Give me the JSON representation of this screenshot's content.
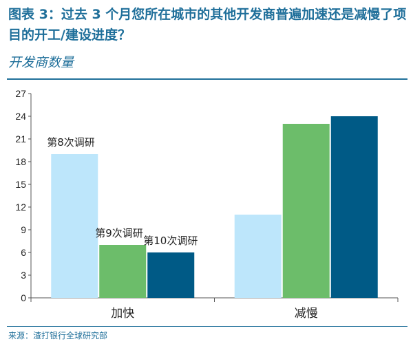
{
  "header": {
    "title": "图表 3：过去 3 个月您所在城市的其他开发商普遍加速还是减慢了项目的开工/建设进度？",
    "subtitle": "开发商数量"
  },
  "footer": {
    "source": "来源：渣打银行全球研究部"
  },
  "chart_data": {
    "type": "bar",
    "title": "图表 3：过去 3 个月您所在城市的其他开发商普遍加速还是减慢了项目的开工/建设进度？",
    "ylabel": "开发商数量",
    "categories": [
      "加快",
      "减慢"
    ],
    "series": [
      {
        "name": "第8次调研",
        "values": [
          19,
          11
        ],
        "color": "#bde6fb"
      },
      {
        "name": "第9次调研",
        "values": [
          7,
          23
        ],
        "color": "#6cbd6a"
      },
      {
        "name": "第10次调研",
        "values": [
          6,
          24
        ],
        "color": "#005a86"
      }
    ],
    "ylim": [
      0,
      27
    ],
    "yticks": [
      0,
      3,
      6,
      9,
      12,
      15,
      18,
      21,
      24,
      27
    ],
    "grid": false,
    "legend": "inline-labels"
  }
}
